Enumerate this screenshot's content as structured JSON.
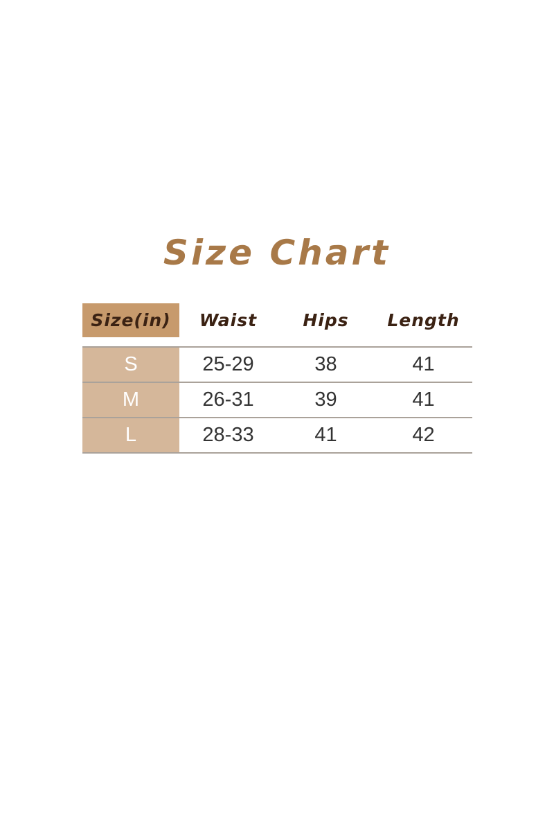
{
  "chart_data": {
    "type": "table",
    "title": "Size Chart",
    "columns": [
      "Size(in)",
      "Waist",
      "Hips",
      "Length"
    ],
    "rows": [
      [
        "S",
        "25-29",
        "38",
        "41"
      ],
      [
        "M",
        "26-31",
        "39",
        "41"
      ],
      [
        "L",
        "28-33",
        "41",
        "42"
      ]
    ],
    "units": "inches",
    "layout": {
      "highlighted_column": "Size(in)",
      "grid": "horizontal-lines-only"
    }
  },
  "colors": {
    "title-color": "#a87948",
    "header-text": "#3b2213",
    "header-cell-bg": "#c79a6c",
    "row-cell-bg": "#d5b79a",
    "body-text": "#333333",
    "size-text": "#ffffff",
    "line": "#aaa29a",
    "page-bg": "#ffffff"
  }
}
